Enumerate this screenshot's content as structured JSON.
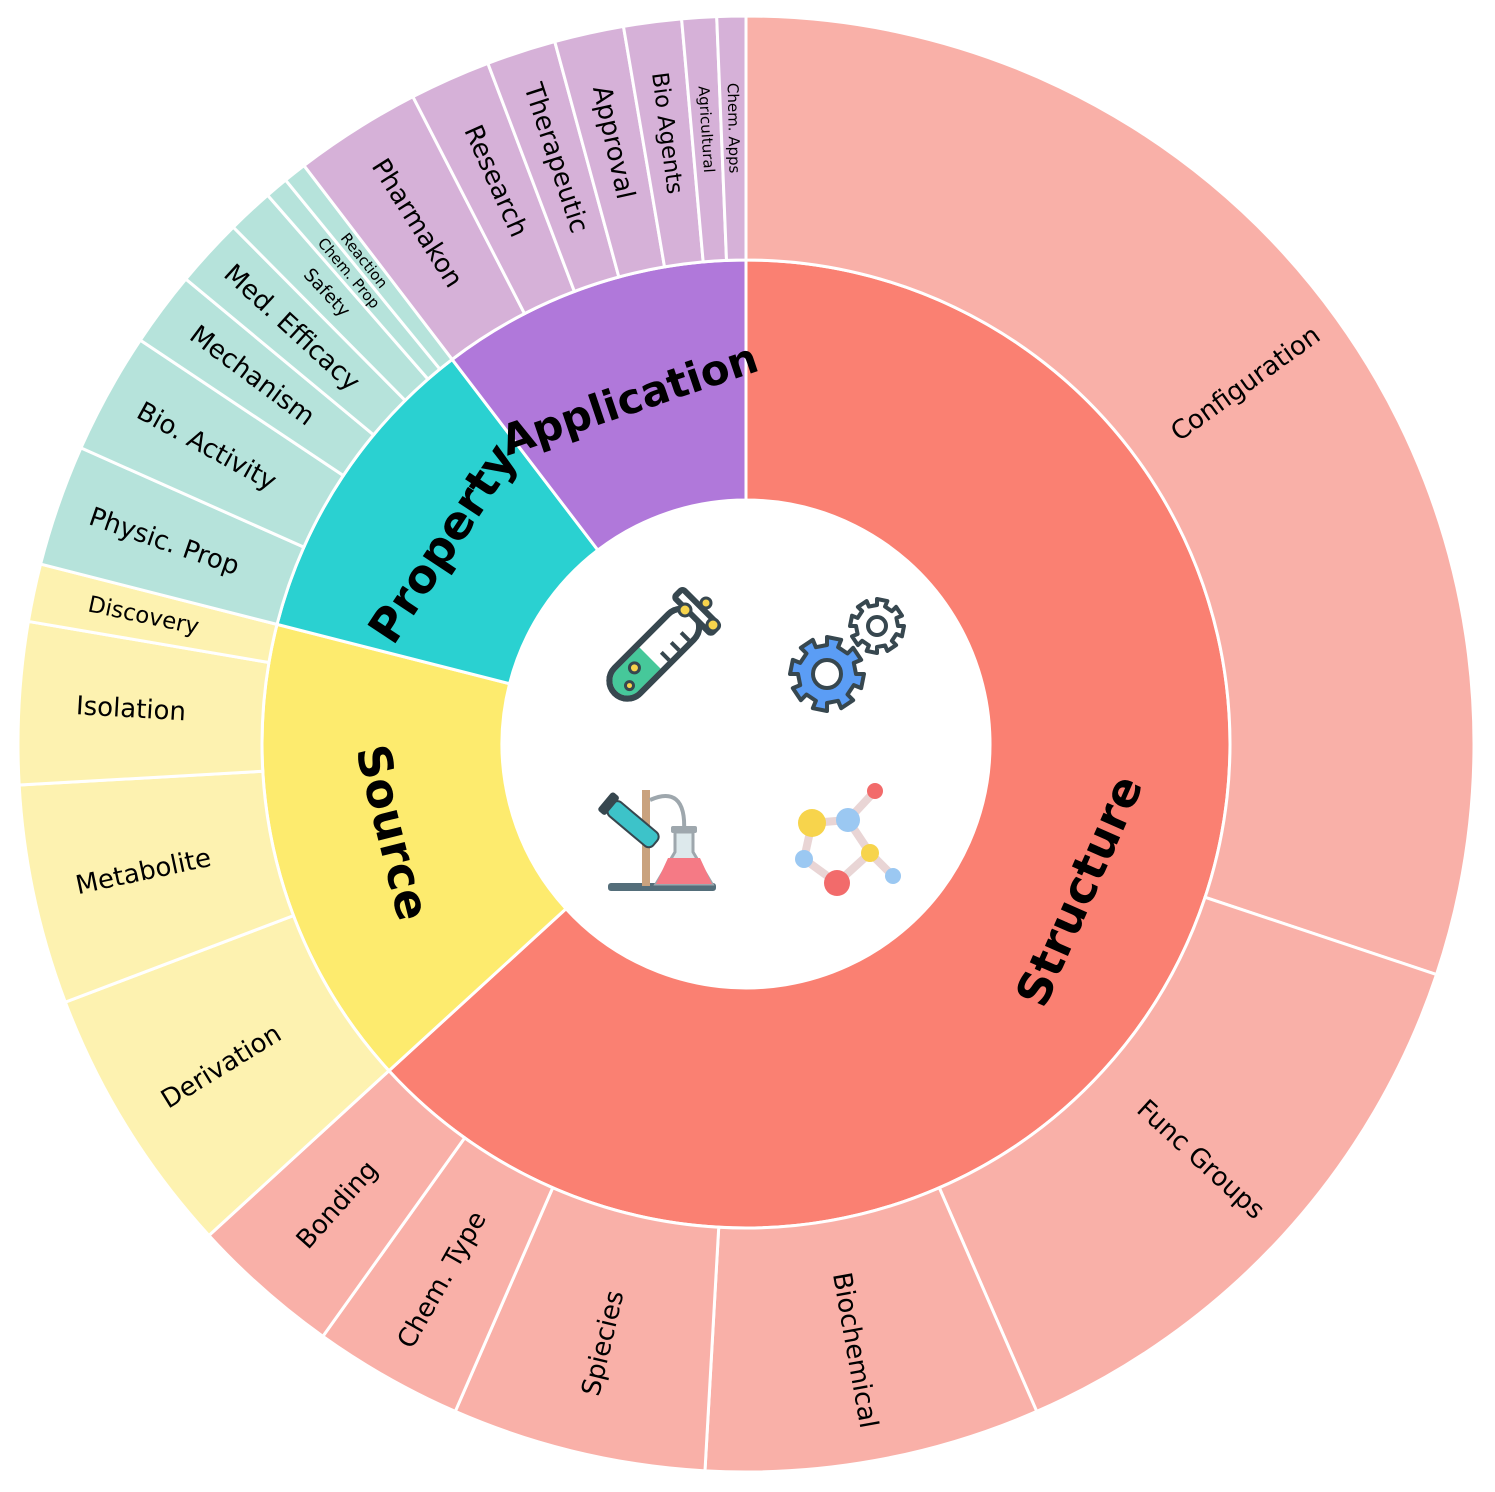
{
  "diagram": {
    "type": "sunburst",
    "categories": [
      {
        "name": "Structure",
        "color": "#FA8072",
        "light_color": "#F9B0A8",
        "children": [
          {
            "name": "Configuration",
            "share": 117.5
          },
          {
            "name": "Func Groups",
            "share": 52
          },
          {
            "name": "Biochemical",
            "share": 29
          },
          {
            "name": "Spiecies",
            "share": 22
          },
          {
            "name": "Chem. Type",
            "share": 13
          },
          {
            "name": "Bonding",
            "share": 13
          }
        ]
      },
      {
        "name": "Source",
        "color": "#FDEB6E",
        "light_color": "#FDF2B0",
        "children": [
          {
            "name": "Derivation",
            "share": 23.5
          },
          {
            "name": "Metabolite",
            "share": 19
          },
          {
            "name": "Isolation",
            "share": 14
          },
          {
            "name": "Discovery",
            "share": 5
          }
        ]
      },
      {
        "name": "Property",
        "color": "#2AD1D1",
        "light_color": "#B6E3DB",
        "children": [
          {
            "name": "Physic. Prop",
            "share": 10.5
          },
          {
            "name": "Bio. Activity",
            "share": 10.5
          },
          {
            "name": "Mechanism",
            "share": 6.5
          },
          {
            "name": "Med. Efficacy",
            "share": 6
          },
          {
            "name": "Safety",
            "share": 4
          },
          {
            "name": "Chem. Prop",
            "share": 2
          },
          {
            "name": "Reaction",
            "share": 2
          }
        ]
      },
      {
        "name": "Application",
        "color": "#B078DA",
        "light_color": "#D6B1D8",
        "children": [
          {
            "name": "Pharmakon",
            "share": 11
          },
          {
            "name": "Research",
            "share": 7
          },
          {
            "name": "Therapeutic",
            "share": 6
          },
          {
            "name": "Approval",
            "share": 6
          },
          {
            "name": "Bio Agents",
            "share": 5
          },
          {
            "name": "Agricultural",
            "share": 3
          },
          {
            "name": "Chem. Apps",
            "share": 2.5
          }
        ]
      }
    ],
    "center_icons": [
      "test-tube-icon",
      "gears-icon",
      "lab-flask-icon",
      "molecule-icon"
    ]
  }
}
